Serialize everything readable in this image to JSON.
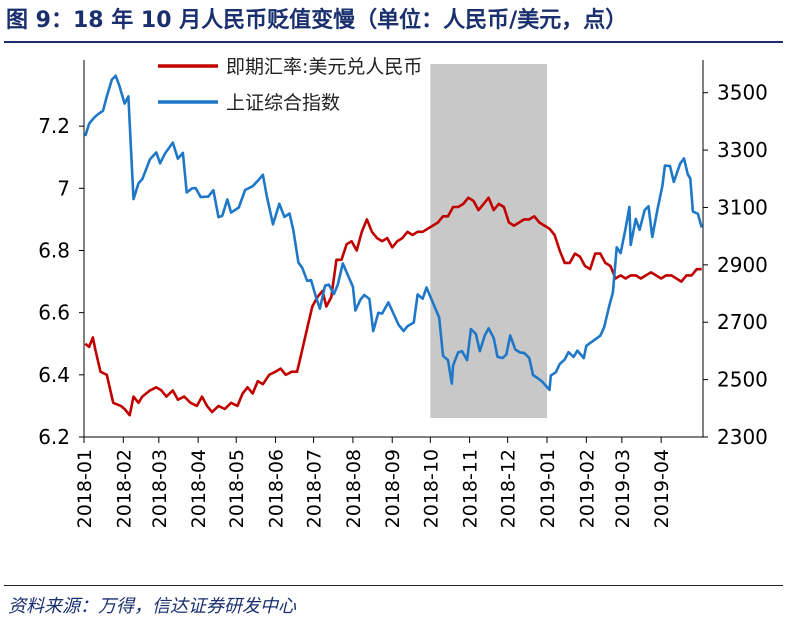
{
  "header": {
    "title": "图 9：18 年 10 月人民币贬值变慢（单位：人民币/美元，点）"
  },
  "footer": {
    "source": "资料来源：万得，信达证券研发中心"
  },
  "chart_data": {
    "type": "line",
    "title": "图 9：18 年 10 月人民币贬值变慢（单位：人民币/美元，点）",
    "x_tick_labels": [
      "2018-01",
      "2018-02",
      "2018-03",
      "2018-04",
      "2018-05",
      "2018-06",
      "2018-07",
      "2018-08",
      "2018-09",
      "2018-10",
      "2018-11",
      "2018-12",
      "2019-01",
      "2019-02",
      "2019-03",
      "2019-04"
    ],
    "y_left": {
      "ticks": [
        6.2,
        6.4,
        6.6,
        6.8,
        7,
        7.2
      ],
      "tick_labels": [
        "6.2",
        "6.4",
        "6.6",
        "6.8",
        "7",
        "7.2"
      ],
      "range": [
        6.2,
        7.4
      ]
    },
    "y_right": {
      "ticks": [
        2300,
        2500,
        2700,
        2900,
        3100,
        3300,
        3500
      ],
      "tick_labels": [
        "2300",
        "2500",
        "2700",
        "2900",
        "3100",
        "3300",
        "3500"
      ],
      "range": [
        2300,
        3600
      ]
    },
    "legend": {
      "placement": "top-left-inside"
    },
    "shaded_region": {
      "from": "2018-10-01",
      "to": "2019-01-01",
      "color": "#c8c8c8"
    },
    "series": [
      {
        "name": "即期汇率:美元兑人民币",
        "axis": "left",
        "color": "#c00000",
        "points": [
          [
            "2018-01-02",
            6.5
          ],
          [
            "2018-01-05",
            6.49
          ],
          [
            "2018-01-08",
            6.52
          ],
          [
            "2018-01-10",
            6.48
          ],
          [
            "2018-01-14",
            6.41
          ],
          [
            "2018-01-19",
            6.4
          ],
          [
            "2018-01-24",
            6.31
          ],
          [
            "2018-01-30",
            6.3
          ],
          [
            "2018-02-02",
            6.29
          ],
          [
            "2018-02-06",
            6.27
          ],
          [
            "2018-02-09",
            6.33
          ],
          [
            "2018-02-13",
            6.31
          ],
          [
            "2018-02-16",
            6.33
          ],
          [
            "2018-02-22",
            6.35
          ],
          [
            "2018-02-27",
            6.36
          ],
          [
            "2018-03-03",
            6.35
          ],
          [
            "2018-03-07",
            6.33
          ],
          [
            "2018-03-12",
            6.35
          ],
          [
            "2018-03-16",
            6.32
          ],
          [
            "2018-03-21",
            6.33
          ],
          [
            "2018-03-26",
            6.31
          ],
          [
            "2018-03-31",
            6.3
          ],
          [
            "2018-04-04",
            6.33
          ],
          [
            "2018-04-08",
            6.3
          ],
          [
            "2018-04-12",
            6.28
          ],
          [
            "2018-04-17",
            6.3
          ],
          [
            "2018-04-22",
            6.29
          ],
          [
            "2018-04-27",
            6.31
          ],
          [
            "2018-05-02",
            6.3
          ],
          [
            "2018-05-06",
            6.34
          ],
          [
            "2018-05-10",
            6.36
          ],
          [
            "2018-05-14",
            6.34
          ],
          [
            "2018-05-18",
            6.38
          ],
          [
            "2018-05-22",
            6.37
          ],
          [
            "2018-05-27",
            6.4
          ],
          [
            "2018-06-01",
            6.41
          ],
          [
            "2018-06-05",
            6.42
          ],
          [
            "2018-06-09",
            6.4
          ],
          [
            "2018-06-14",
            6.41
          ],
          [
            "2018-06-18",
            6.41
          ],
          [
            "2018-06-22",
            6.48
          ],
          [
            "2018-06-26",
            6.55
          ],
          [
            "2018-06-30",
            6.62
          ],
          [
            "2018-07-04",
            6.65
          ],
          [
            "2018-07-08",
            6.67
          ],
          [
            "2018-07-11",
            6.62
          ],
          [
            "2018-07-15",
            6.65
          ],
          [
            "2018-07-19",
            6.77
          ],
          [
            "2018-07-23",
            6.77
          ],
          [
            "2018-07-27",
            6.82
          ],
          [
            "2018-07-31",
            6.83
          ],
          [
            "2018-08-04",
            6.8
          ],
          [
            "2018-08-08",
            6.86
          ],
          [
            "2018-08-12",
            6.9
          ],
          [
            "2018-08-16",
            6.86
          ],
          [
            "2018-08-20",
            6.84
          ],
          [
            "2018-08-24",
            6.83
          ],
          [
            "2018-08-28",
            6.84
          ],
          [
            "2018-09-01",
            6.81
          ],
          [
            "2018-09-05",
            6.83
          ],
          [
            "2018-09-09",
            6.84
          ],
          [
            "2018-09-13",
            6.86
          ],
          [
            "2018-09-17",
            6.85
          ],
          [
            "2018-09-21",
            6.86
          ],
          [
            "2018-09-25",
            6.86
          ],
          [
            "2018-09-29",
            6.87
          ],
          [
            "2018-10-03",
            6.88
          ],
          [
            "2018-10-07",
            6.89
          ],
          [
            "2018-10-11",
            6.91
          ],
          [
            "2018-10-15",
            6.91
          ],
          [
            "2018-10-19",
            6.94
          ],
          [
            "2018-10-23",
            6.94
          ],
          [
            "2018-10-27",
            6.95
          ],
          [
            "2018-10-31",
            6.97
          ],
          [
            "2018-11-04",
            6.96
          ],
          [
            "2018-11-08",
            6.93
          ],
          [
            "2018-11-12",
            6.95
          ],
          [
            "2018-11-16",
            6.97
          ],
          [
            "2018-11-20",
            6.93
          ],
          [
            "2018-11-24",
            6.95
          ],
          [
            "2018-11-28",
            6.94
          ],
          [
            "2018-12-02",
            6.89
          ],
          [
            "2018-12-06",
            6.88
          ],
          [
            "2018-12-10",
            6.89
          ],
          [
            "2018-12-14",
            6.9
          ],
          [
            "2018-12-18",
            6.9
          ],
          [
            "2018-12-22",
            6.91
          ],
          [
            "2018-12-26",
            6.89
          ],
          [
            "2018-12-30",
            6.88
          ],
          [
            "2019-01-03",
            6.87
          ],
          [
            "2019-01-07",
            6.85
          ],
          [
            "2019-01-11",
            6.8
          ],
          [
            "2019-01-15",
            6.76
          ],
          [
            "2019-01-19",
            6.76
          ],
          [
            "2019-01-23",
            6.79
          ],
          [
            "2019-01-27",
            6.78
          ],
          [
            "2019-01-31",
            6.75
          ],
          [
            "2019-02-04",
            6.74
          ],
          [
            "2019-02-08",
            6.79
          ],
          [
            "2019-02-12",
            6.79
          ],
          [
            "2019-02-16",
            6.76
          ],
          [
            "2019-02-20",
            6.75
          ],
          [
            "2019-02-24",
            6.71
          ],
          [
            "2019-02-28",
            6.72
          ],
          [
            "2019-03-04",
            6.71
          ],
          [
            "2019-03-08",
            6.72
          ],
          [
            "2019-03-12",
            6.72
          ],
          [
            "2019-03-16",
            6.71
          ],
          [
            "2019-03-20",
            6.72
          ],
          [
            "2019-03-24",
            6.73
          ],
          [
            "2019-03-28",
            6.72
          ],
          [
            "2019-04-01",
            6.71
          ],
          [
            "2019-04-05",
            6.72
          ],
          [
            "2019-04-09",
            6.72
          ],
          [
            "2019-04-13",
            6.71
          ],
          [
            "2019-04-17",
            6.7
          ],
          [
            "2019-04-21",
            6.72
          ],
          [
            "2019-04-25",
            6.72
          ],
          [
            "2019-04-29",
            6.74
          ],
          [
            "2019-05-03",
            6.74
          ]
        ]
      },
      {
        "name": "上证综合指数",
        "axis": "right",
        "color": "#1f77c8",
        "points": [
          [
            "2018-01-02",
            3349
          ],
          [
            "2018-01-05",
            3392
          ],
          [
            "2018-01-09",
            3413
          ],
          [
            "2018-01-12",
            3425
          ],
          [
            "2018-01-16",
            3437
          ],
          [
            "2018-01-19",
            3487
          ],
          [
            "2018-01-23",
            3546
          ],
          [
            "2018-01-26",
            3559
          ],
          [
            "2018-01-29",
            3523
          ],
          [
            "2018-02-02",
            3462
          ],
          [
            "2018-02-05",
            3487
          ],
          [
            "2018-02-07",
            3309
          ],
          [
            "2018-02-09",
            3129
          ],
          [
            "2018-02-13",
            3184
          ],
          [
            "2018-02-16",
            3199
          ],
          [
            "2018-02-22",
            3268
          ],
          [
            "2018-02-27",
            3292
          ],
          [
            "2018-03-02",
            3254
          ],
          [
            "2018-03-06",
            3289
          ],
          [
            "2018-03-12",
            3326
          ],
          [
            "2018-03-16",
            3270
          ],
          [
            "2018-03-20",
            3290
          ],
          [
            "2018-03-23",
            3152
          ],
          [
            "2018-03-27",
            3166
          ],
          [
            "2018-03-30",
            3168
          ],
          [
            "2018-04-03",
            3136
          ],
          [
            "2018-04-09",
            3138
          ],
          [
            "2018-04-13",
            3160
          ],
          [
            "2018-04-17",
            3066
          ],
          [
            "2018-04-20",
            3071
          ],
          [
            "2018-04-24",
            3128
          ],
          [
            "2018-04-27",
            3082
          ],
          [
            "2018-05-03",
            3100
          ],
          [
            "2018-05-08",
            3161
          ],
          [
            "2018-05-14",
            3174
          ],
          [
            "2018-05-18",
            3193
          ],
          [
            "2018-05-22",
            3214
          ],
          [
            "2018-05-25",
            3141
          ],
          [
            "2018-05-30",
            3041
          ],
          [
            "2018-06-04",
            3113
          ],
          [
            "2018-06-08",
            3067
          ],
          [
            "2018-06-12",
            3079
          ],
          [
            "2018-06-15",
            3021
          ],
          [
            "2018-06-19",
            2908
          ],
          [
            "2018-06-22",
            2890
          ],
          [
            "2018-06-26",
            2844
          ],
          [
            "2018-06-29",
            2847
          ],
          [
            "2018-07-03",
            2786
          ],
          [
            "2018-07-06",
            2747
          ],
          [
            "2018-07-10",
            2827
          ],
          [
            "2018-07-13",
            2831
          ],
          [
            "2018-07-17",
            2798
          ],
          [
            "2018-07-20",
            2830
          ],
          [
            "2018-07-24",
            2905
          ],
          [
            "2018-07-27",
            2874
          ],
          [
            "2018-08-01",
            2824
          ],
          [
            "2018-08-03",
            2741
          ],
          [
            "2018-08-07",
            2779
          ],
          [
            "2018-08-10",
            2795
          ],
          [
            "2018-08-14",
            2781
          ],
          [
            "2018-08-17",
            2669
          ],
          [
            "2018-08-21",
            2733
          ],
          [
            "2018-08-24",
            2730
          ],
          [
            "2018-08-29",
            2769
          ],
          [
            "2018-09-03",
            2720
          ],
          [
            "2018-09-06",
            2691
          ],
          [
            "2018-09-10",
            2669
          ],
          [
            "2018-09-13",
            2686
          ],
          [
            "2018-09-18",
            2699
          ],
          [
            "2018-09-21",
            2797
          ],
          [
            "2018-09-25",
            2782
          ],
          [
            "2018-09-28",
            2821
          ],
          [
            "2018-10-08",
            2716
          ],
          [
            "2018-10-11",
            2583
          ],
          [
            "2018-10-15",
            2568
          ],
          [
            "2018-10-18",
            2486
          ],
          [
            "2018-10-19",
            2550
          ],
          [
            "2018-10-23",
            2595
          ],
          [
            "2018-10-26",
            2599
          ],
          [
            "2018-10-30",
            2568
          ],
          [
            "2018-11-02",
            2676
          ],
          [
            "2018-11-06",
            2659
          ],
          [
            "2018-11-09",
            2599
          ],
          [
            "2018-11-13",
            2654
          ],
          [
            "2018-11-16",
            2679
          ],
          [
            "2018-11-20",
            2645
          ],
          [
            "2018-11-23",
            2579
          ],
          [
            "2018-11-27",
            2575
          ],
          [
            "2018-11-30",
            2588
          ],
          [
            "2018-12-03",
            2654
          ],
          [
            "2018-12-07",
            2605
          ],
          [
            "2018-12-11",
            2594
          ],
          [
            "2018-12-14",
            2593
          ],
          [
            "2018-12-18",
            2576
          ],
          [
            "2018-12-21",
            2516
          ],
          [
            "2018-12-25",
            2504
          ],
          [
            "2018-12-28",
            2494
          ],
          [
            "2019-01-03",
            2464
          ],
          [
            "2019-01-04",
            2514
          ],
          [
            "2019-01-08",
            2526
          ],
          [
            "2019-01-11",
            2554
          ],
          [
            "2019-01-15",
            2570
          ],
          [
            "2019-01-18",
            2596
          ],
          [
            "2019-01-22",
            2579
          ],
          [
            "2019-01-25",
            2601
          ],
          [
            "2019-01-30",
            2575
          ],
          [
            "2019-02-01",
            2618
          ],
          [
            "2019-02-12",
            2653
          ],
          [
            "2019-02-15",
            2682
          ],
          [
            "2019-02-19",
            2755
          ],
          [
            "2019-02-22",
            2804
          ],
          [
            "2019-02-25",
            2961
          ],
          [
            "2019-02-28",
            2941
          ],
          [
            "2019-03-04",
            3027
          ],
          [
            "2019-03-07",
            3102
          ],
          [
            "2019-03-08",
            2969
          ],
          [
            "2019-03-12",
            3060
          ],
          [
            "2019-03-15",
            3022
          ],
          [
            "2019-03-19",
            3091
          ],
          [
            "2019-03-22",
            3104
          ],
          [
            "2019-03-25",
            2997
          ],
          [
            "2019-03-29",
            3090
          ],
          [
            "2019-04-02",
            3176
          ],
          [
            "2019-04-04",
            3246
          ],
          [
            "2019-04-08",
            3244
          ],
          [
            "2019-04-11",
            3189
          ],
          [
            "2019-04-16",
            3253
          ],
          [
            "2019-04-19",
            3271
          ],
          [
            "2019-04-22",
            3215
          ],
          [
            "2019-04-24",
            3201
          ],
          [
            "2019-04-26",
            3086
          ],
          [
            "2019-04-30",
            3078
          ],
          [
            "2019-05-03",
            3030
          ]
        ]
      }
    ]
  }
}
